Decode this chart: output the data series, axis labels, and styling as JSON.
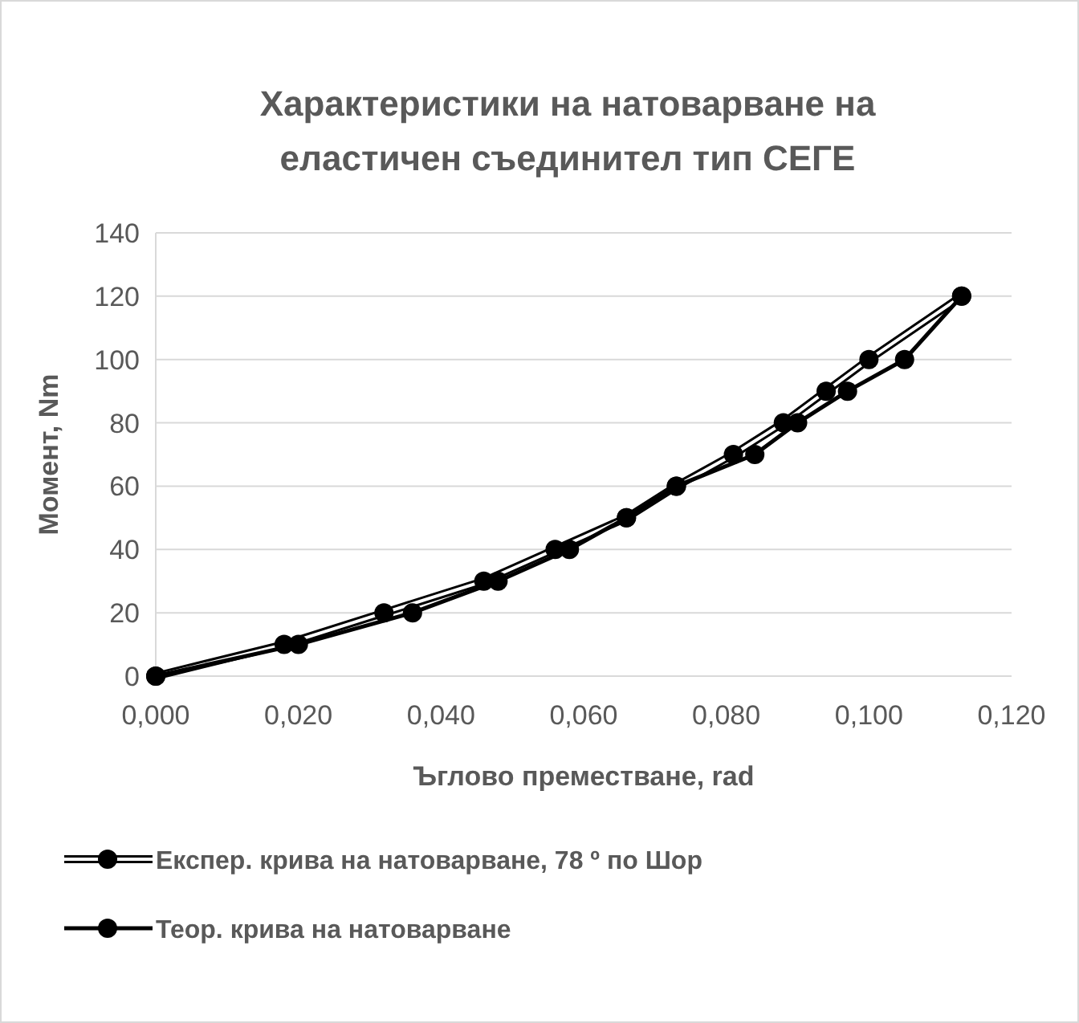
{
  "chart_data": {
    "type": "line",
    "title": "Характеристики на натоварване на еластичен съединител тип СЕГЕ",
    "xlabel": "Ъглово преместване, rad",
    "ylabel": "Момент, Nm",
    "series": [
      {
        "name": "Експер. крива на натоварване, 78 º по Шор",
        "color": "#ffffff",
        "x": [
          0,
          0.018,
          0.032,
          0.046,
          0.056,
          0.066,
          0.073,
          0.081,
          0.088,
          0.094,
          0.1,
          0.113
        ],
        "values": [
          0,
          10,
          20,
          30,
          40,
          50,
          60,
          70,
          80,
          90,
          100,
          120
        ]
      },
      {
        "name": "Теор. крива на натоварване",
        "color": "#000000",
        "x": [
          0,
          0.02,
          0.036,
          0.048,
          0.058,
          0.066,
          0.073,
          0.084,
          0.09,
          0.097,
          0.105,
          0.113
        ],
        "values": [
          0,
          10,
          20,
          30,
          40,
          50,
          60,
          70,
          80,
          90,
          100,
          120
        ]
      }
    ],
    "xlim": [
      0,
      0.12
    ],
    "xticks": [
      {
        "value": 0,
        "label": "0,000"
      },
      {
        "value": 0.02,
        "label": "0,020"
      },
      {
        "value": 0.04,
        "label": "0,040"
      },
      {
        "value": 0.06,
        "label": "0,060"
      },
      {
        "value": 0.08,
        "label": "0,080"
      },
      {
        "value": 0.1,
        "label": "0,100"
      },
      {
        "value": 0.12,
        "label": "0,120"
      }
    ],
    "ylim": [
      0,
      140
    ],
    "yticks": [
      0,
      20,
      40,
      60,
      80,
      100,
      120,
      140
    ],
    "grid": "y",
    "legend": "bottom",
    "marker": "circle",
    "line_style": "solid"
  }
}
